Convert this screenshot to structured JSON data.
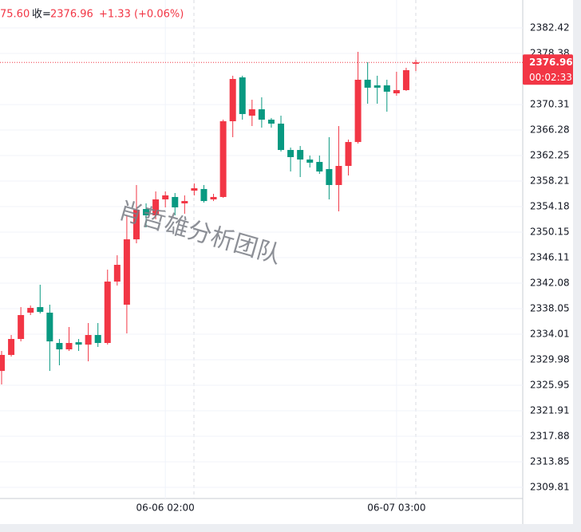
{
  "chart_data": {
    "type": "candlestick",
    "header": [
      "75.60",
      "收=",
      "+1.33 (+0.06%)"
    ],
    "watermark": "肖哲雄分析团队",
    "countdown": "00:02:33",
    "categories": [
      null,
      null,
      null,
      null,
      null,
      null,
      null,
      null,
      null,
      null,
      null,
      null,
      null,
      null,
      null,
      null,
      null,
      "06-06 02:00",
      null,
      null,
      null,
      null,
      null,
      null,
      null,
      null,
      null,
      null,
      null,
      null,
      null,
      null,
      null,
      null,
      null,
      null,
      null,
      null,
      null,
      null,
      null,
      "06-07 03:00",
      null,
      null
    ],
    "open": [
      2328.21,
      2330.74,
      2333.26,
      2337.42,
      2338.3,
      2337.42,
      2332.63,
      2331.62,
      2332.75,
      2332.37,
      2333.89,
      2332.63,
      2342.33,
      2338.68,
      2349.01,
      2353.8,
      2352.8,
      2355.32,
      2355.7,
      2354.69,
      2356.7,
      2356.96,
      2355.32,
      2355.7,
      2367.67,
      2374.6,
      2368.55,
      2369.56,
      2367.92,
      2367.29,
      2363.13,
      2363.13,
      2361.62,
      2361.24,
      2360.11,
      2357.59,
      2360.61,
      2364.39,
      2374.23,
      2373.34,
      2373.34,
      2372.08,
      2372.59,
      2376.75
    ],
    "high": [
      2331.37,
      2333.89,
      2338.3,
      2338.55,
      2341.83,
      2338.68,
      2333.26,
      2335.15,
      2333.26,
      2335.78,
      2335.78,
      2344.22,
      2346.49,
      2352.8,
      2357.59,
      2354.69,
      2356.58,
      2356.58,
      2356.33,
      2355.95,
      2357.84,
      2357.59,
      2356.2,
      2367.92,
      2374.86,
      2374.86,
      2371.07,
      2371.45,
      2368.18,
      2368.55,
      2363.51,
      2363.76,
      2362.25,
      2362.25,
      2365.15,
      2366.91,
      2364.77,
      2378.64,
      2377.0,
      2374.86,
      2374.23,
      2375.49,
      2376.12,
      2377.38
    ],
    "low": [
      2326.07,
      2330.48,
      2332.88,
      2337.04,
      2337.29,
      2328.21,
      2329.1,
      2331.37,
      2331.37,
      2329.73,
      2332.0,
      2332.37,
      2341.7,
      2334.14,
      2348.38,
      2350.91,
      2352.17,
      2354.06,
      2352.8,
      2353.05,
      2355.95,
      2354.81,
      2355.06,
      2355.57,
      2365.15,
      2367.92,
      2366.91,
      2366.66,
      2366.66,
      2362.88,
      2359.73,
      2358.85,
      2360.36,
      2359.35,
      2355.32,
      2353.43,
      2359.1,
      2364.14,
      2370.44,
      2370.44,
      2369.18,
      2371.7,
      2372.46,
      2375.6
    ],
    "close": [
      2330.74,
      2333.26,
      2337.04,
      2338.17,
      2337.54,
      2332.88,
      2331.62,
      2332.63,
      2332.37,
      2333.89,
      2332.63,
      2342.33,
      2344.98,
      2349.01,
      2353.68,
      2352.8,
      2355.32,
      2355.95,
      2354.06,
      2355.06,
      2357.08,
      2355.06,
      2355.7,
      2367.67,
      2374.35,
      2368.81,
      2369.56,
      2367.92,
      2367.29,
      2363.13,
      2362.0,
      2361.62,
      2361.12,
      2359.73,
      2357.59,
      2360.61,
      2364.39,
      2374.23,
      2372.97,
      2372.97,
      2372.34,
      2372.59,
      2375.74,
      2376.96
    ],
    "up_color": "#f23645",
    "down_color": "#089981",
    "ylim": [
      2308.05,
      2386.2
    ],
    "yticks": [
      2309.81,
      2313.85,
      2317.88,
      2321.91,
      2325.95,
      2329.98,
      2334.01,
      2338.05,
      2342.08,
      2346.11,
      2350.15,
      2354.18,
      2358.21,
      2362.25,
      2366.28,
      2370.31,
      2378.38,
      2382.42
    ],
    "grid": true
  }
}
